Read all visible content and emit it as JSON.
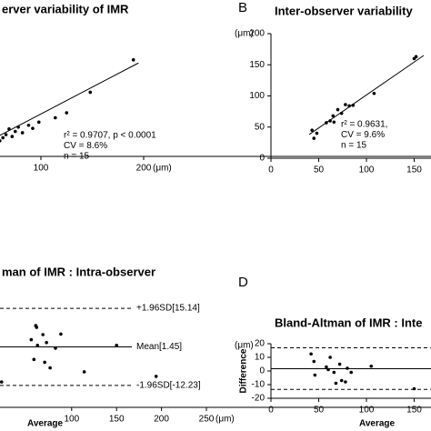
{
  "chart_data": [
    {
      "type": "scatter",
      "title": "erver variability of IMR",
      "x": [
        60,
        63,
        66,
        69,
        72,
        75,
        78,
        82,
        88,
        92,
        98,
        114,
        125,
        148,
        190
      ],
      "values": [
        25,
        30,
        35,
        44,
        32,
        40,
        47,
        38,
        50,
        45,
        55,
        62,
        70,
        103,
        155
      ],
      "color": "#000000",
      "xlim": [
        0,
        200
      ],
      "ylim": [
        0,
        200
      ],
      "xticks": [
        100,
        200
      ],
      "x_unit": "(μm)",
      "fit": {
        "x": [
          50,
          195
        ],
        "y": [
          25,
          150
        ]
      },
      "annotations": [
        "r² = 0.9707, p < 0.0001",
        "CV = 8.6%",
        "n = 15"
      ]
    },
    {
      "type": "scatter",
      "label": "B",
      "title": "Inter-observer variability",
      "x": [
        43,
        45,
        48,
        58,
        62,
        65,
        66,
        70,
        74,
        78,
        82,
        86,
        108,
        150,
        152
      ],
      "values": [
        45,
        32,
        40,
        57,
        60,
        68,
        58,
        78,
        72,
        86,
        84,
        85,
        104,
        160,
        163
      ],
      "color": "#000000",
      "xlim": [
        0,
        160
      ],
      "ylim": [
        0,
        200
      ],
      "xticks": [
        0,
        50,
        100,
        150
      ],
      "yticks": [
        0,
        50,
        100,
        150,
        200
      ],
      "y_unit": "(μm)",
      "fit": {
        "x": [
          40,
          160
        ],
        "y": [
          38,
          165
        ]
      },
      "annotations": [
        "r² = 0.9631,",
        "CV = 9.6%",
        "n = 15"
      ]
    },
    {
      "type": "bland-altman",
      "title": "man of IMR : Intra-observer",
      "x": [
        22,
        55,
        58,
        60,
        62,
        61,
        68,
        70,
        72,
        76,
        82,
        88,
        114,
        150,
        194
      ],
      "values": [
        -11,
        4,
        -3,
        9,
        2,
        8.4,
        5.8,
        -4,
        3,
        -6,
        1,
        6,
        -7.4,
        2,
        -9
      ],
      "color": "#000000",
      "xlim": [
        0,
        250
      ],
      "ylim": [
        -20,
        20
      ],
      "xticks": [
        100,
        150,
        200,
        250
      ],
      "x_unit": "(μm)",
      "xlabel": "Average",
      "ref_lines": [
        {
          "value": 15.14,
          "label": "+1.96SD[15.14]",
          "style": "dashed"
        },
        {
          "value": 1.45,
          "label": "Mean[1.45]",
          "style": "solid"
        },
        {
          "value": -12.23,
          "label": "-1.96SD[-12.23]",
          "style": "dashed"
        }
      ]
    },
    {
      "type": "bland-altman",
      "label": "D",
      "title": "Bland-Altman of IMR : Inte",
      "x": [
        42,
        45,
        46,
        58,
        60,
        62,
        66,
        68,
        72,
        74,
        78,
        80,
        84,
        105,
        150
      ],
      "values": [
        12.5,
        7,
        -3,
        3,
        1,
        10,
        -1,
        -9,
        5,
        -7,
        -8,
        2,
        -1,
        3.5,
        -13
      ],
      "color": "#000000",
      "xlim": [
        0,
        160
      ],
      "ylim": [
        -20,
        20
      ],
      "xticks": [
        0,
        50,
        100,
        150
      ],
      "yticks": [
        -20,
        -10,
        0,
        10,
        20
      ],
      "y_unit": "(μm)",
      "ylabel": "Difference",
      "xlabel": "Average",
      "ref_lines": [
        {
          "value": 17,
          "style": "dashed"
        },
        {
          "value": 1.7,
          "style": "solid"
        },
        {
          "value": -13.5,
          "style": "dashed"
        }
      ]
    }
  ]
}
